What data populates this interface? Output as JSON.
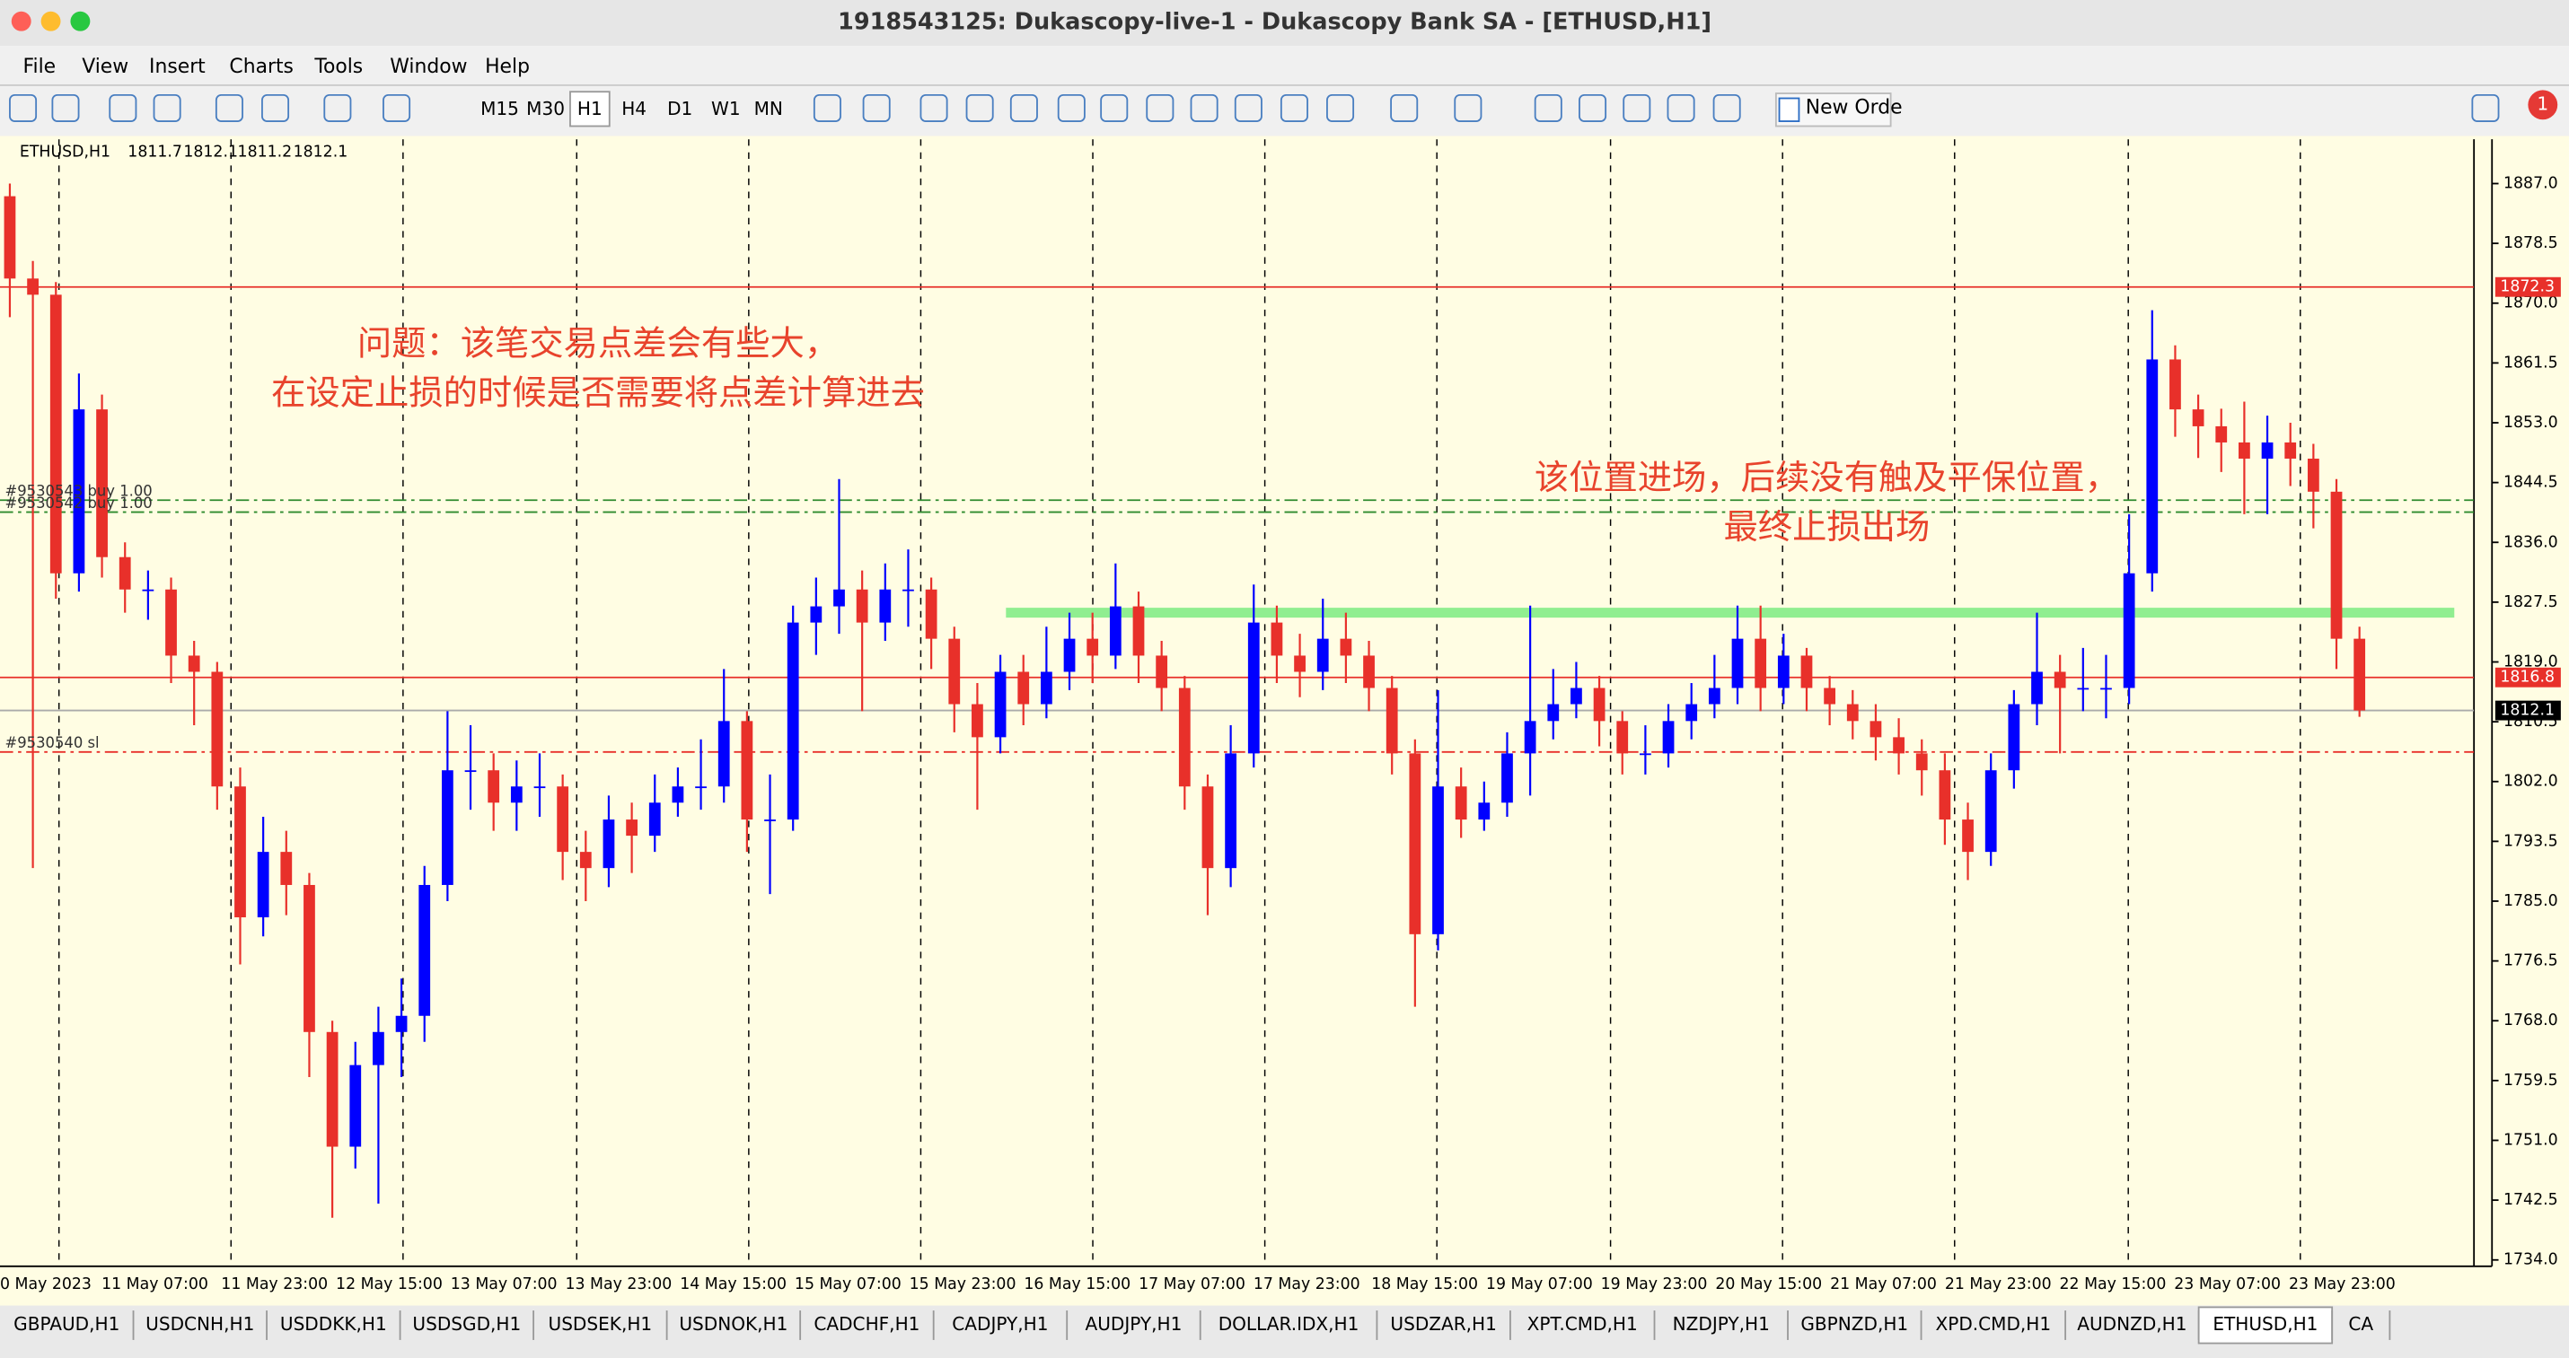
{
  "window": {
    "title": "1918543125: Dukascopy-live-1 - Dukascopy Bank SA - [ETHUSD,H1]"
  },
  "menu": [
    "File",
    "View",
    "Insert",
    "Charts",
    "Tools",
    "Window",
    "Help"
  ],
  "toolbar": {
    "timeframes": [
      "M15",
      "M30",
      "H1",
      "H4",
      "D1",
      "W1",
      "MN"
    ],
    "new_order": "New Orde",
    "notifications": 1
  },
  "chart_data": {
    "type": "candlestick",
    "symbol": "ETHUSD,H1",
    "quote": [
      1811.7,
      1812.1,
      1811.2,
      1812.1
    ],
    "up_color": "#0000ff",
    "down_color": "#e8302a",
    "open": [
      1885.2,
      1873.5,
      1871.2,
      1831.6,
      1854.9,
      1833.9,
      1829.3,
      1829.3,
      1819.9,
      1817.6,
      1801.3,
      1782.7,
      1792.0,
      1787.3,
      1766.4,
      1750.1,
      1761.7,
      1766.4,
      1768.7,
      1787.3,
      1803.6,
      1803.6,
      1799.0,
      1801.3,
      1801.3,
      1792.0,
      1789.7,
      1796.6,
      1794.3,
      1799.0,
      1801.3,
      1801.3,
      1810.6,
      1796.6,
      1796.6,
      1824.6,
      1826.9,
      1829.3,
      1824.6,
      1829.3,
      1829.3,
      1822.3,
      1813.0,
      1808.3,
      1817.6,
      1813.0,
      1817.6,
      1822.3,
      1819.9,
      1826.9,
      1819.9,
      1815.3,
      1801.3,
      1789.7,
      1806.0,
      1824.6,
      1819.9,
      1817.6,
      1822.3,
      1819.9,
      1815.3,
      1806.0,
      1780.3,
      1801.3,
      1796.6,
      1799.0,
      1806.0,
      1810.6,
      1813.0,
      1815.3,
      1810.6,
      1806.0,
      1806.0,
      1810.6,
      1813.0,
      1815.3,
      1822.3,
      1815.3,
      1819.9,
      1815.3,
      1813.0,
      1810.6,
      1808.3,
      1806.0,
      1803.6,
      1796.6,
      1792.0,
      1803.6,
      1813.0,
      1817.6,
      1815.3,
      1815.3,
      1815.3,
      1831.6,
      1862.0,
      1854.9,
      1852.5,
      1850.2,
      1847.9,
      1850.2,
      1847.9,
      1843.2,
      1822.3
    ],
    "high": [
      1887.0,
      1876.0,
      1873.0,
      1860.0,
      1857.0,
      1836.0,
      1832.0,
      1831.0,
      1822.0,
      1819.0,
      1804.0,
      1797.0,
      1795.0,
      1789.0,
      1768.0,
      1765.0,
      1770.0,
      1774.0,
      1790.0,
      1812.0,
      1810.0,
      1806.0,
      1805.0,
      1806.0,
      1803.0,
      1795.0,
      1800.0,
      1799.0,
      1803.0,
      1804.0,
      1808.0,
      1818.0,
      1812.0,
      1803.0,
      1827.0,
      1831.0,
      1845.0,
      1832.0,
      1833.0,
      1835.0,
      1831.0,
      1824.0,
      1816.0,
      1820.0,
      1820.0,
      1824.0,
      1826.0,
      1826.0,
      1833.0,
      1829.0,
      1822.0,
      1817.0,
      1803.0,
      1810.0,
      1830.0,
      1827.0,
      1823.0,
      1828.0,
      1826.0,
      1822.0,
      1817.0,
      1808.0,
      1815.0,
      1804.0,
      1802.0,
      1809.0,
      1827.0,
      1818.0,
      1819.0,
      1817.0,
      1812.0,
      1810.0,
      1813.0,
      1816.0,
      1820.0,
      1827.0,
      1827.0,
      1823.0,
      1821.0,
      1817.0,
      1815.0,
      1813.0,
      1811.0,
      1808.0,
      1806.0,
      1799.0,
      1806.0,
      1815.0,
      1826.0,
      1820.0,
      1821.0,
      1820.0,
      1840.0,
      1869.0,
      1864.0,
      1857.0,
      1855.0,
      1856.0,
      1854.0,
      1853.0,
      1850.0,
      1845.0,
      1824.0
    ],
    "low": [
      1868.0,
      1789.7,
      1828.0,
      1829.0,
      1831.0,
      1826.0,
      1825.0,
      1816.0,
      1810.0,
      1798.0,
      1776.0,
      1780.0,
      1783.0,
      1760.0,
      1740.0,
      1747.0,
      1742.0,
      1760.0,
      1765.0,
      1785.0,
      1798.0,
      1795.0,
      1795.0,
      1797.0,
      1788.0,
      1785.0,
      1787.0,
      1789.0,
      1792.0,
      1797.0,
      1798.0,
      1799.0,
      1792.0,
      1786.0,
      1795.0,
      1820.0,
      1823.0,
      1812.0,
      1822.0,
      1824.0,
      1818.0,
      1809.0,
      1798.0,
      1806.0,
      1810.0,
      1811.0,
      1815.0,
      1816.0,
      1818.0,
      1816.0,
      1812.0,
      1798.0,
      1783.0,
      1787.0,
      1804.0,
      1816.0,
      1814.0,
      1815.0,
      1816.0,
      1812.0,
      1803.0,
      1770.0,
      1778.0,
      1794.0,
      1795.0,
      1797.0,
      1800.0,
      1808.0,
      1811.0,
      1807.0,
      1803.0,
      1803.0,
      1804.0,
      1808.0,
      1811.0,
      1813.0,
      1812.0,
      1813.0,
      1812.0,
      1810.0,
      1808.0,
      1805.0,
      1803.0,
      1800.0,
      1793.0,
      1788.0,
      1790.0,
      1801.0,
      1810.0,
      1806.0,
      1812.0,
      1811.0,
      1813.0,
      1829.0,
      1851.0,
      1848.0,
      1846.0,
      1840.0,
      1840.0,
      1844.0,
      1838.0,
      1818.0,
      1811.2
    ],
    "close": [
      1873.5,
      1871.2,
      1831.6,
      1854.9,
      1833.9,
      1829.3,
      1829.3,
      1819.9,
      1817.6,
      1801.3,
      1782.7,
      1792.0,
      1787.3,
      1766.4,
      1750.1,
      1761.7,
      1766.4,
      1768.7,
      1787.3,
      1803.6,
      1803.6,
      1799.0,
      1801.3,
      1801.3,
      1792.0,
      1789.7,
      1796.6,
      1794.3,
      1799.0,
      1801.3,
      1801.3,
      1810.6,
      1796.6,
      1796.6,
      1824.6,
      1826.9,
      1829.3,
      1824.6,
      1829.3,
      1829.3,
      1822.3,
      1813.0,
      1808.3,
      1817.6,
      1813.0,
      1817.6,
      1822.3,
      1819.9,
      1826.9,
      1819.9,
      1815.3,
      1801.3,
      1789.7,
      1806.0,
      1824.6,
      1819.9,
      1817.6,
      1822.3,
      1819.9,
      1815.3,
      1806.0,
      1780.3,
      1801.3,
      1796.6,
      1799.0,
      1806.0,
      1810.6,
      1813.0,
      1815.3,
      1810.6,
      1806.0,
      1806.0,
      1810.6,
      1813.0,
      1815.3,
      1822.3,
      1815.3,
      1819.9,
      1815.3,
      1813.0,
      1810.6,
      1808.3,
      1806.0,
      1803.6,
      1796.6,
      1792.0,
      1803.6,
      1813.0,
      1817.6,
      1815.3,
      1815.3,
      1815.3,
      1831.6,
      1862.0,
      1854.9,
      1852.5,
      1850.2,
      1847.9,
      1850.2,
      1847.9,
      1843.2,
      1822.3,
      1812.1
    ],
    "ylim": [
      1733.1,
      1893.3
    ],
    "yticks": [
      {
        "value": 1887,
        "label": "1887.0"
      },
      1878.5,
      {
        "value": 1870,
        "label": "1870.0"
      },
      1861.5,
      {
        "value": 1853,
        "label": "1853.0"
      },
      1844.5,
      {
        "value": 1836,
        "label": "1836.0"
      },
      1827.5,
      {
        "value": 1819,
        "label": "1819.0"
      },
      1810.5,
      {
        "value": 1802,
        "label": "1802.0"
      },
      1793.5,
      {
        "value": 1785,
        "label": "1785.0"
      },
      1776.5,
      {
        "value": 1768,
        "label": "1768.0"
      },
      1759.5,
      {
        "value": 1751,
        "label": "1751.0"
      },
      1742.5,
      {
        "value": 1734,
        "label": "1734.0"
      }
    ],
    "x_labels": [
      "0 May 2023",
      "11 May 07:00",
      "11 May 23:00",
      "12 May 15:00",
      "13 May 07:00",
      "13 May 23:00",
      "14 May 15:00",
      "15 May 07:00",
      "15 May 23:00",
      "16 May 15:00",
      "17 May 07:00",
      "17 May 23:00",
      "18 May 15:00",
      "19 May 07:00",
      "19 May 23:00",
      "20 May 15:00",
      "21 May 07:00",
      "21 May 23:00",
      "22 May 15:00",
      "23 May 07:00",
      "23 May 23:00"
    ],
    "period_separators": true,
    "levels": [
      {
        "value": 1872.3,
        "color": "#e8302a",
        "style": "solid",
        "tag": true
      },
      {
        "value": 1842.0,
        "color": "#2e8b2e",
        "style": "dashdot",
        "label": "#9530543 buy 1.00"
      },
      {
        "value": 1840.3,
        "color": "#2e8b2e",
        "style": "dashdot",
        "label": "#9530542 buy 1.00"
      },
      {
        "value": 1826.0,
        "color": "#90ee90",
        "style": "band"
      },
      {
        "value": 1816.8,
        "color": "#e8302a",
        "style": "solid",
        "tag": true
      },
      {
        "value": 1812.1,
        "color": "#aaaaaa",
        "style": "solid",
        "tag": true
      },
      {
        "value": 1806.2,
        "color": "#e8302a",
        "style": "dashdot",
        "label": "#9530540 sl"
      }
    ],
    "annotation_color": "#e8432c",
    "annotations": [
      {
        "lines": [
          "问题：该笔交易点差会有些大，",
          "在设定止损的时候是否需要将点差计算进去"
        ]
      },
      {
        "lines": [
          "该位置进场，后续没有触及平保位置，",
          "最终止损出场"
        ]
      }
    ]
  },
  "tabs": [
    "GBPAUD,H1",
    "USDCNH,H1",
    "USDDKK,H1",
    "USDSGD,H1",
    "USDSEK,H1",
    "USDNOK,H1",
    "CADCHF,H1",
    "CADJPY,H1",
    "AUDJPY,H1",
    "DOLLAR.IDX,H1",
    "USDZAR,H1",
    "XPT.CMD,H1",
    "NZDJPY,H1",
    "GBPNZD,H1",
    "XPD.CMD,H1",
    "AUDNZD,H1",
    "ETHUSD,H1",
    "CA"
  ]
}
